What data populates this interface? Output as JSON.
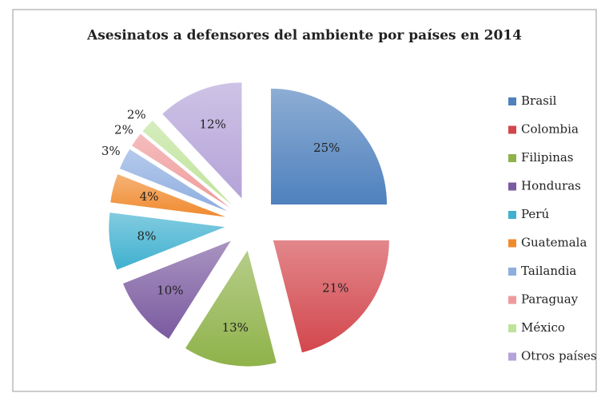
{
  "chart_data": {
    "type": "pie",
    "title": "Asesinatos a defensores del ambiente por países en 2014",
    "categories": [
      "Brasil",
      "Colombia",
      "Filipinas",
      "Honduras",
      "Perú",
      "Guatemala",
      "Tailandia",
      "Paraguay",
      "México",
      "Otros países"
    ],
    "values": [
      25,
      21,
      13,
      10,
      8,
      4,
      3,
      2,
      2,
      12
    ],
    "value_labels": [
      "25%",
      "21%",
      "13%",
      "10%",
      "8%",
      "4%",
      "3%",
      "2%",
      "2%",
      "12%"
    ],
    "colors": [
      "#4f81bd",
      "#d2474d",
      "#8fb24a",
      "#7a5aa0",
      "#3fb0cf",
      "#f08a2e",
      "#8eaee0",
      "#ef9a9a",
      "#bfe39a",
      "#b4a3d8"
    ],
    "legend": "right"
  }
}
